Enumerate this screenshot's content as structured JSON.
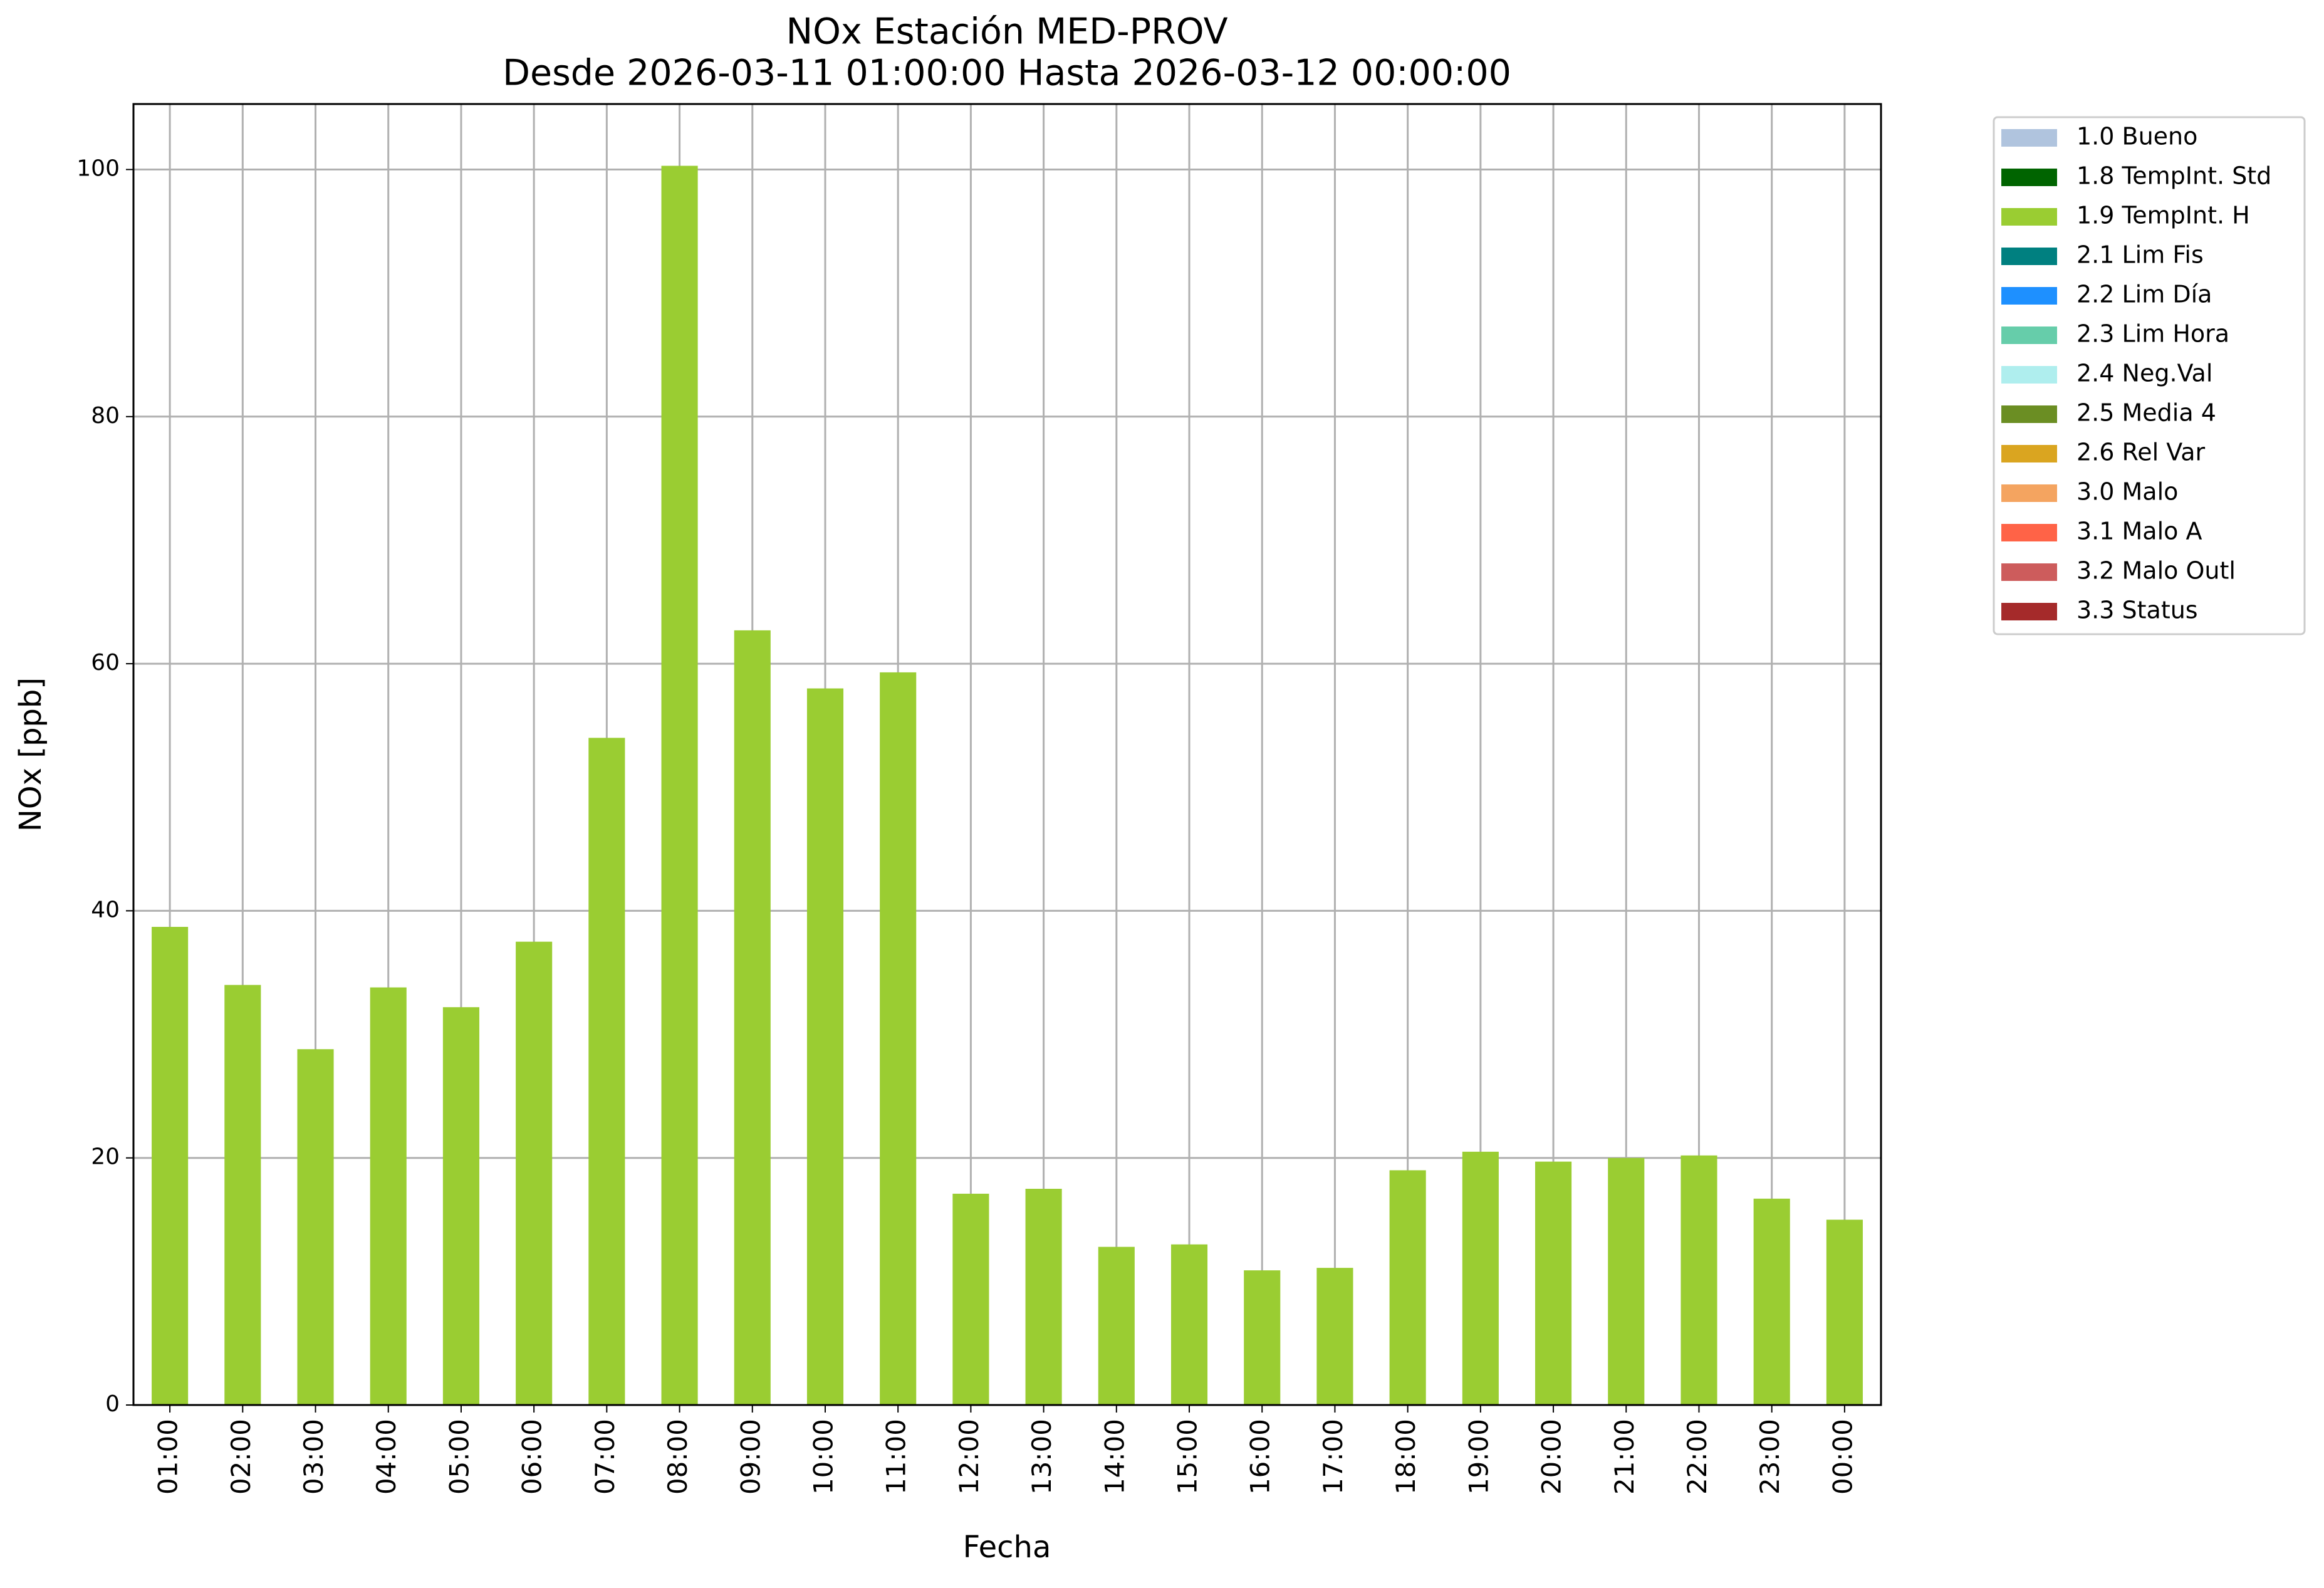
{
  "chart_data": {
    "type": "bar",
    "title": "NOx Estación MED-PROV",
    "subtitle": "Desde 2026-03-11 01:00:00 Hasta 2026-03-12 00:00:00",
    "x_label": "Fecha",
    "y_label": "NOx [ppb]",
    "categories": [
      "01:00",
      "02:00",
      "03:00",
      "04:00",
      "05:00",
      "06:00",
      "07:00",
      "08:00",
      "09:00",
      "10:00",
      "11:00",
      "12:00",
      "13:00",
      "14:00",
      "15:00",
      "16:00",
      "17:00",
      "18:00",
      "19:00",
      "20:00",
      "21:00",
      "22:00",
      "23:00",
      "00:00"
    ],
    "series": [
      {
        "name": "1.0 Bueno",
        "color": "#b0c4de"
      },
      {
        "name": "1.8 TempInt. Std",
        "color": "#006400"
      },
      {
        "name": "1.9 TempInt. H",
        "color": "#9acd32",
        "values": [
          38.7,
          34.0,
          28.8,
          33.8,
          32.2,
          37.5,
          54.0,
          100.3,
          62.7,
          58.0,
          59.3,
          17.1,
          17.5,
          12.8,
          13.0,
          10.9,
          11.1,
          19.0,
          20.5,
          19.7,
          20.0,
          20.2,
          16.7,
          15.0
        ]
      },
      {
        "name": "2.1 Lim Fis",
        "color": "#008080"
      },
      {
        "name": "2.2 Lim Día",
        "color": "#1e90ff"
      },
      {
        "name": "2.3 Lim Hora",
        "color": "#66cdaa"
      },
      {
        "name": "2.4 Neg.Val",
        "color": "#afeeee"
      },
      {
        "name": "2.5 Media 4",
        "color": "#6b8e23"
      },
      {
        "name": "2.6 Rel Var",
        "color": "#daa520"
      },
      {
        "name": "3.0 Malo",
        "color": "#f4a460"
      },
      {
        "name": "3.1 Malo A",
        "color": "#ff6347"
      },
      {
        "name": "3.2 Malo Outl",
        "color": "#cd5c5c"
      },
      {
        "name": "3.3 Status",
        "color": "#a52a2a"
      }
    ],
    "ylim": [
      0,
      105.3
    ],
    "yticks": [
      0,
      20,
      40,
      60,
      80,
      100
    ],
    "grid": true,
    "legend": "outside-upper-right"
  }
}
